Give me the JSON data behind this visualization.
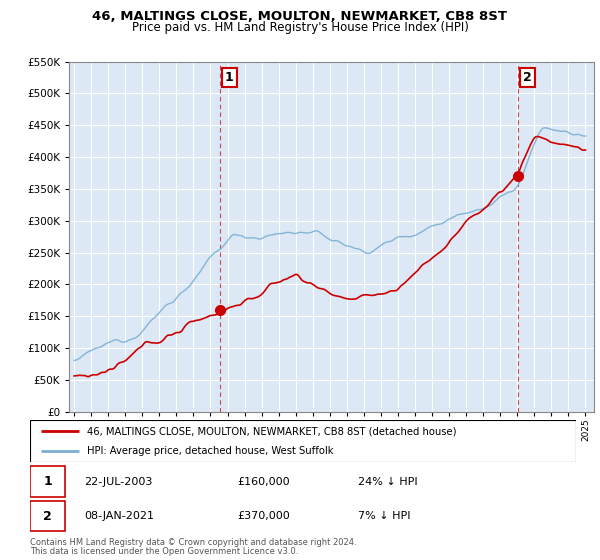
{
  "title": "46, MALTINGS CLOSE, MOULTON, NEWMARKET, CB8 8ST",
  "subtitle": "Price paid vs. HM Land Registry's House Price Index (HPI)",
  "legend_line1": "46, MALTINGS CLOSE, MOULTON, NEWMARKET, CB8 8ST (detached house)",
  "legend_line2": "HPI: Average price, detached house, West Suffolk",
  "sale1_date": 2003.55,
  "sale1_price": 160000,
  "sale1_label": "1",
  "sale1_display": "22-JUL-2003",
  "sale1_text": "£160,000",
  "sale1_pct": "24% ↓ HPI",
  "sale2_date": 2021.03,
  "sale2_price": 370000,
  "sale2_label": "2",
  "sale2_display": "08-JAN-2021",
  "sale2_text": "£370,000",
  "sale2_pct": "7% ↓ HPI",
  "footer1": "Contains HM Land Registry data © Crown copyright and database right 2024.",
  "footer2": "This data is licensed under the Open Government Licence v3.0.",
  "red_color": "#cc0000",
  "blue_color": "#7aafd4",
  "ylim": [
    0,
    550000
  ],
  "xlim": [
    1994.7,
    2025.5
  ],
  "plot_bg": "#dce8f5",
  "background_color": "#ffffff",
  "grid_color": "#ffffff"
}
